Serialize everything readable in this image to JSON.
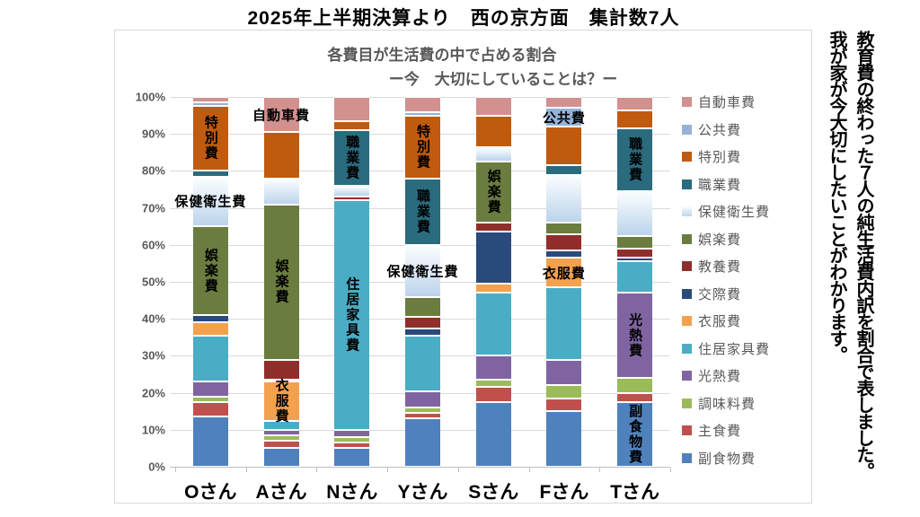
{
  "page_title": "2025年上半期決算より　西の京方面　集計数7人",
  "side_note": {
    "line1": "教育費の終わった７人の純生活費内訳を割合で表しました。",
    "line2": "我が家が今大切にしたいことがわかります。"
  },
  "chart_data": {
    "type": "bar",
    "stacked": true,
    "percent_stacked": true,
    "title_line1": "各費目が生活費の中で占める割合",
    "title_line2": "ー今　大切にしていることは？ー",
    "categories": [
      "Oさん",
      "Aさん",
      "Nさん",
      "Yさん",
      "Sさん",
      "Fさん",
      "Tさん"
    ],
    "y_axis": {
      "min": 0,
      "max": 100,
      "tick_step": 10,
      "tick_labels": [
        "0%",
        "10%",
        "20%",
        "30%",
        "40%",
        "50%",
        "60%",
        "70%",
        "80%",
        "90%",
        "100%"
      ]
    },
    "legend_position": "right",
    "grid": true,
    "series_order_note": "listed top-to-bottom as in legend; bars stack bottom-to-top in reverse order",
    "series": [
      {
        "name": "自動車費",
        "color": "#D2908E",
        "values": [
          1.5,
          9.5,
          6.5,
          4,
          5,
          3,
          3.5
        ]
      },
      {
        "name": "公共費",
        "color": "#95B3D7",
        "values": [
          1,
          0,
          0,
          1,
          0,
          5,
          0
        ]
      },
      {
        "name": "特別費",
        "color": "#C05A0E",
        "values": [
          17.5,
          12.5,
          2.5,
          17,
          8.5,
          10.5,
          5
        ]
      },
      {
        "name": "職業費",
        "color": "#2A6B7E",
        "values": [
          1.5,
          0,
          15,
          18,
          0,
          2.5,
          17
        ]
      },
      {
        "name": "保健衛生費",
        "color": "#BDD4EB",
        "gradient": [
          "#FBFDFF",
          "#BCD4EB"
        ],
        "values": [
          13.5,
          7,
          3,
          14,
          4,
          13,
          12
        ]
      },
      {
        "name": "娯楽費",
        "color": "#6A7D3F",
        "values": [
          24,
          42,
          0,
          5.5,
          16.5,
          3,
          3.5
        ]
      },
      {
        "name": "教養費",
        "color": "#902E2C",
        "values": [
          0,
          5.5,
          1,
          3,
          2.5,
          4.5,
          2.5
        ]
      },
      {
        "name": "交際費",
        "color": "#2A4A7B",
        "values": [
          2,
          0.5,
          0,
          2,
          14,
          2,
          1
        ]
      },
      {
        "name": "衣服費",
        "color": "#F4A14E",
        "values": [
          3.5,
          10.5,
          0,
          0,
          2.5,
          8,
          0
        ]
      },
      {
        "name": "住居家具費",
        "color": "#4BACC6",
        "values": [
          12.5,
          2.5,
          62,
          15,
          17,
          19.5,
          8.5
        ]
      },
      {
        "name": "光熱費",
        "color": "#8064A2",
        "values": [
          4,
          1.5,
          2,
          4.5,
          6.5,
          7,
          23
        ]
      },
      {
        "name": "調味料費",
        "color": "#9BBB59",
        "values": [
          1.5,
          1.5,
          1.5,
          1.5,
          2,
          3.5,
          4
        ]
      },
      {
        "name": "主食費",
        "color": "#C0504D",
        "values": [
          4,
          2,
          1.5,
          1.5,
          4,
          3.5,
          2.5
        ]
      },
      {
        "name": "副食物費",
        "color": "#4F81BD",
        "values": [
          13.5,
          5,
          5,
          13,
          17.5,
          15,
          17.5
        ]
      }
    ],
    "bar_labels": [
      {
        "bar": "Oさん",
        "series": "特別費",
        "orientation": "vertical"
      },
      {
        "bar": "Oさん",
        "series": "保健衛生費",
        "orientation": "horizontal"
      },
      {
        "bar": "Oさん",
        "series": "娯楽費",
        "orientation": "vertical"
      },
      {
        "bar": "Aさん",
        "series": "自動車費",
        "orientation": "horizontal"
      },
      {
        "bar": "Aさん",
        "series": "娯楽費",
        "orientation": "vertical"
      },
      {
        "bar": "Aさん",
        "series": "衣服費",
        "orientation": "vertical"
      },
      {
        "bar": "Nさん",
        "series": "職業費",
        "orientation": "vertical"
      },
      {
        "bar": "Nさん",
        "series": "住居家具費",
        "orientation": "vertical"
      },
      {
        "bar": "Yさん",
        "series": "特別費",
        "orientation": "vertical"
      },
      {
        "bar": "Yさん",
        "series": "職業費",
        "orientation": "vertical"
      },
      {
        "bar": "Yさん",
        "series": "保健衛生費",
        "orientation": "horizontal"
      },
      {
        "bar": "Sさん",
        "series": "娯楽費",
        "orientation": "vertical"
      },
      {
        "bar": "Fさん",
        "series": "公共費",
        "orientation": "horizontal"
      },
      {
        "bar": "Fさん",
        "series": "衣服費",
        "orientation": "horizontal"
      },
      {
        "bar": "Tさん",
        "series": "職業費",
        "orientation": "vertical"
      },
      {
        "bar": "Tさん",
        "series": "光熱費",
        "orientation": "vertical"
      },
      {
        "bar": "Tさん",
        "series": "副食物費",
        "orientation": "vertical"
      }
    ]
  }
}
